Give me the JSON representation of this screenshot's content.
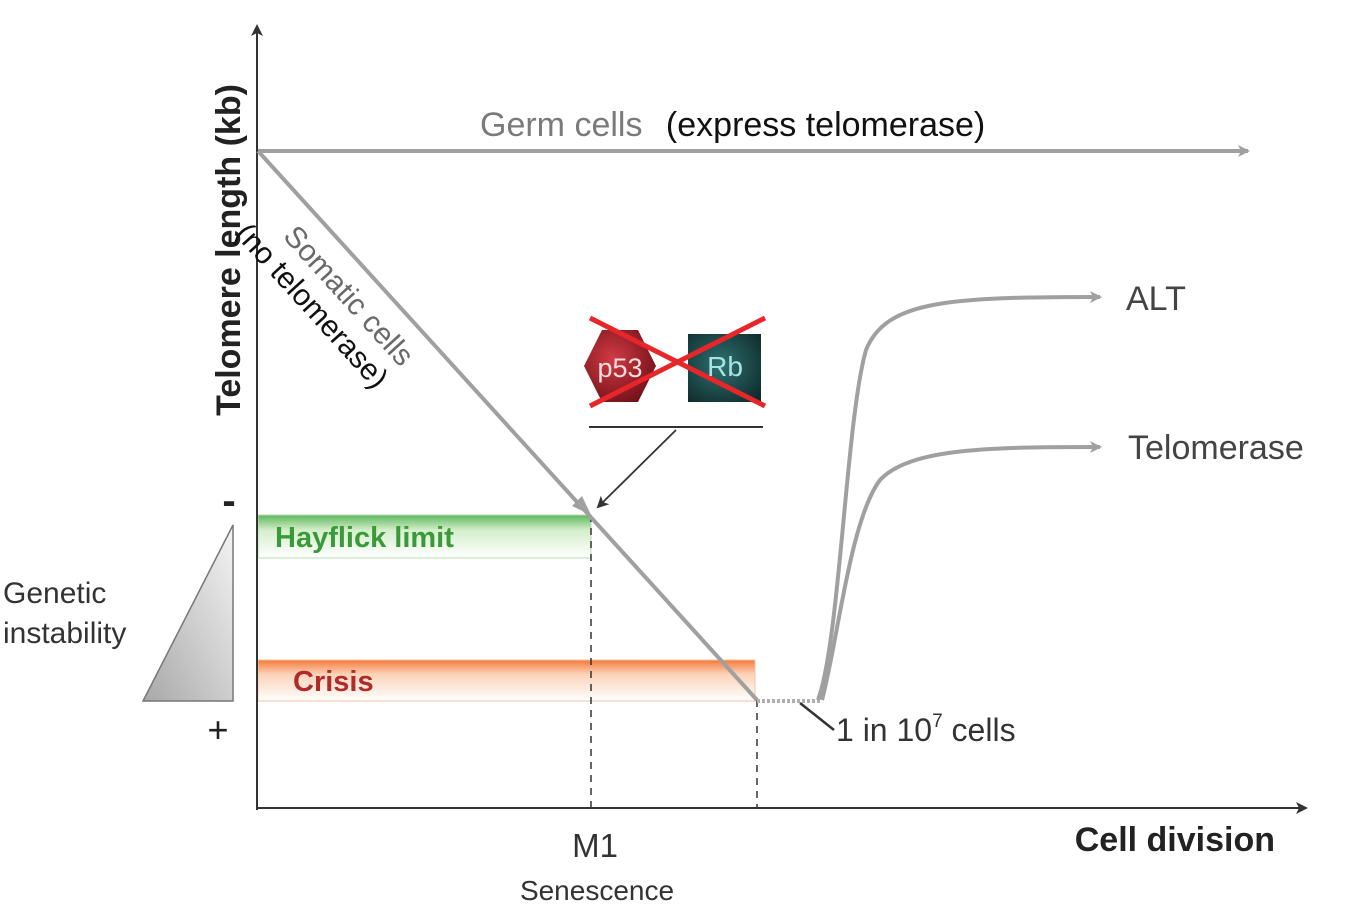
{
  "axes": {
    "y_label": "Telomere length (kb)",
    "x_label": "Cell division",
    "y_minus": "-",
    "y_plus": "+"
  },
  "germ": {
    "text_gray": "Germ cells",
    "text_black": "(express telomerase)"
  },
  "somatic": {
    "line1": "Somatic cells",
    "line2": "(no telomerase)"
  },
  "proteins": {
    "p53": "p53",
    "rb": "Rb"
  },
  "bands": {
    "hayflick": "Hayflick limit",
    "crisis": "Crisis"
  },
  "instability": {
    "line1": "Genetic",
    "line2": "instability"
  },
  "outcomes": {
    "alt": "ALT",
    "telomerase": "Telomerase"
  },
  "rare": {
    "prefix": "1 in 10",
    "exponent": "7",
    "suffix": " cells"
  },
  "ticks": {
    "m1": "M1",
    "m1_sub": "Senescence"
  },
  "colors": {
    "line": "#a0a0a0",
    "axis": "#333333",
    "hayflick": "#3a9a3a",
    "crisis": "#b02a2a",
    "cross": "#e8262a",
    "p53": "#a11c25",
    "rb": "#1f4d4d"
  }
}
